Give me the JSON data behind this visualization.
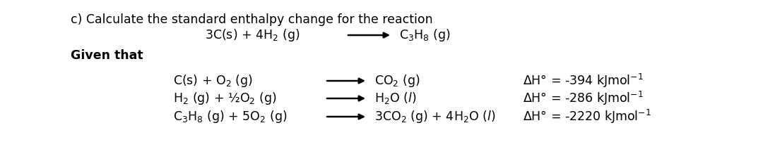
{
  "bg_color": "#ffffff",
  "figsize": [
    10.8,
    2.39
  ],
  "dpi": 100,
  "title_text": "c) Calculate the standard enthalpy change for the reaction",
  "main_reaction_left": "3C(s) + 4H$_2$ (g)",
  "main_reaction_right": "C$_3$H$_8$ (g)",
  "given_that": "Given that",
  "reactions": [
    {
      "left": "C(s) + O$_2$ (g)",
      "right": "CO$_2$ (g)",
      "enthalpy": "ΔH° = -394 kJmol$^{-1}$"
    },
    {
      "left": "H$_2$ (g) + ½O$_2$ (g)",
      "right": "H$_2$O ($l$)",
      "enthalpy": "ΔH° = -286 kJmol$^{-1}$"
    },
    {
      "left": "C$_3$H$_8$ (g) + 5O$_2$ (g)",
      "right": "3CO$_2$ (g) + 4H$_2$O ($l$)",
      "enthalpy": "ΔH° = -2220 kJmol$^{-1}$"
    }
  ],
  "fontsize": 12.5
}
